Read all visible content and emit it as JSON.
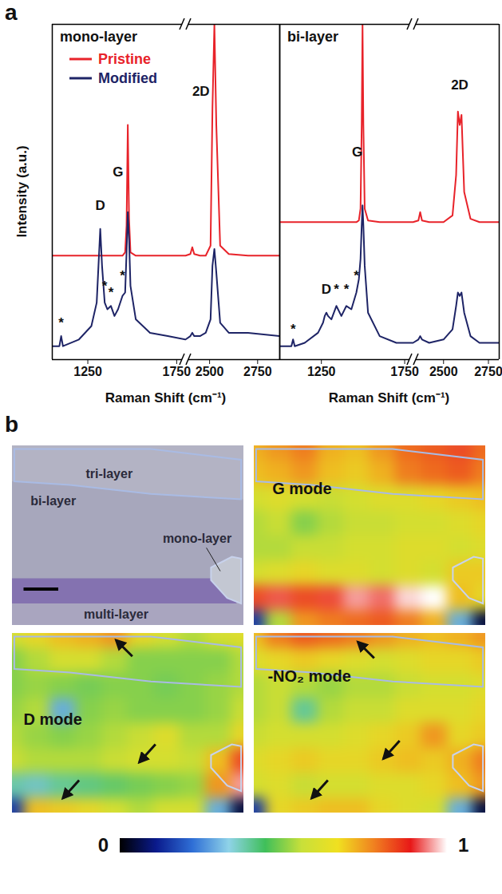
{
  "panel_labels": [
    "a",
    "b"
  ],
  "chart_data": [
    {
      "type": "line",
      "title": "mono-layer",
      "y_label": "Intensity (a.u.)",
      "x_label": "Raman Shift (cm⁻¹)",
      "ylim": [
        0,
        100
      ],
      "tick_labels": "x",
      "legend": "top-left",
      "segments": [
        {
          "xlim": [
            1050,
            1800
          ],
          "xticks": [
            1250,
            1750
          ]
        },
        {
          "xlim": [
            2375,
            2865
          ],
          "xticks": [
            2500,
            2750
          ]
        }
      ],
      "x": [
        1050,
        1090,
        1100,
        1110,
        1200,
        1270,
        1300,
        1310,
        1320,
        1330,
        1345,
        1360,
        1380,
        1400,
        1420,
        1445,
        1460,
        1468,
        1475,
        1482,
        1490,
        1520,
        1600,
        1700,
        1800,
        2375,
        2400,
        2410,
        2420,
        2450,
        2480,
        2505,
        2515,
        2525,
        2535,
        2555,
        2600,
        2700,
        2865
      ],
      "series": [
        {
          "name": "Pristine",
          "color": "#e8232a",
          "values": [
            31,
            31,
            31,
            31,
            31,
            31,
            31,
            31,
            31,
            31,
            31,
            31,
            31,
            31,
            31,
            31,
            32,
            40,
            70,
            42,
            32,
            31,
            31,
            31,
            31,
            31,
            31.5,
            33.5,
            31.5,
            31,
            31,
            34,
            75,
            100,
            70,
            34,
            31.5,
            31,
            31
          ]
        },
        {
          "name": "Modified",
          "color": "#1e2466",
          "values": [
            4,
            4,
            7,
            4,
            6,
            10,
            17,
            28,
            39,
            28,
            17,
            15,
            16,
            13,
            15,
            19,
            20,
            32,
            44,
            36,
            22,
            12,
            8,
            7,
            6,
            6,
            7,
            8,
            7,
            7,
            8,
            12,
            28,
            33,
            26,
            11,
            8,
            8,
            7
          ]
        }
      ],
      "annotations": [
        {
          "x": 1320,
          "y": 46,
          "text": "D"
        },
        {
          "x": 1100,
          "y": 11,
          "text": "*"
        },
        {
          "x": 1345,
          "y": 22,
          "text": "*"
        },
        {
          "x": 1380,
          "y": 20,
          "text": "*"
        },
        {
          "x": 1445,
          "y": 25,
          "text": "*"
        },
        {
          "x": 1420,
          "y": 56,
          "text": "G"
        },
        {
          "x": 2455,
          "y": 80,
          "text": "2D"
        }
      ]
    },
    {
      "type": "line",
      "title": "bi-layer",
      "x_label": "Raman Shift (cm⁻¹)",
      "ylim": [
        0,
        100
      ],
      "tick_labels": "x",
      "segments": [
        {
          "xlim": [
            1000,
            1800
          ],
          "xticks": [
            1250,
            1750
          ]
        },
        {
          "xlim": [
            2330,
            2810
          ],
          "xticks": [
            2500,
            2750
          ]
        }
      ],
      "x": [
        1000,
        1070,
        1080,
        1090,
        1150,
        1230,
        1260,
        1270,
        1280,
        1290,
        1310,
        1340,
        1370,
        1400,
        1430,
        1460,
        1475,
        1485,
        1492,
        1497,
        1502,
        1510,
        1530,
        1600,
        1700,
        1800,
        2330,
        2360,
        2370,
        2380,
        2420,
        2500,
        2550,
        2570,
        2580,
        2590,
        2600,
        2615,
        2650,
        2700,
        2810
      ],
      "series": [
        {
          "name": "Pristine",
          "color": "#e8232a",
          "values": [
            41,
            41,
            41,
            41,
            41,
            41,
            41,
            41,
            41,
            41,
            41,
            41,
            41,
            41,
            41,
            41,
            41.5,
            45,
            70,
            100,
            70,
            45,
            41.5,
            41,
            41,
            41,
            41,
            41.5,
            44,
            41.5,
            41,
            41,
            43,
            55,
            74,
            70,
            73,
            50,
            42,
            41,
            41
          ]
        },
        {
          "name": "Modified",
          "color": "#1e2466",
          "values": [
            4,
            4,
            6,
            4,
            5,
            8,
            11,
            13,
            14,
            13,
            12,
            16,
            13,
            16,
            15,
            20,
            24,
            30,
            40,
            46,
            40,
            28,
            14,
            7,
            5,
            5,
            5,
            6,
            7,
            6,
            5,
            6,
            9,
            16,
            20,
            19,
            20,
            14,
            7,
            5,
            5
          ]
        }
      ],
      "annotations": [
        {
          "x": 1280,
          "y": 21,
          "text": "D"
        },
        {
          "x": 1080,
          "y": 9,
          "text": "*"
        },
        {
          "x": 1340,
          "y": 21,
          "text": "*"
        },
        {
          "x": 1400,
          "y": 21,
          "text": "*"
        },
        {
          "x": 1460,
          "y": 25,
          "text": "*"
        },
        {
          "x": 1465,
          "y": 62,
          "text": "G"
        },
        {
          "x": 2590,
          "y": 82,
          "text": "2D"
        }
      ]
    },
    {
      "type": "image",
      "labels": [
        "tri-layer",
        "bi-layer",
        "mono-layer",
        "multi-layer"
      ]
    },
    {
      "type": "heatmap",
      "title": "G mode",
      "cells": [
        [
          0.72,
          0.75,
          0.78,
          0.72,
          0.7,
          0.75,
          0.8,
          0.82,
          0.85,
          0.8
        ],
        [
          0.7,
          0.72,
          0.75,
          0.7,
          0.68,
          0.72,
          0.78,
          0.8,
          0.82,
          0.78
        ],
        [
          0.6,
          0.62,
          0.6,
          0.58,
          0.6,
          0.62,
          0.62,
          0.65,
          0.68,
          0.7
        ],
        [
          0.55,
          0.58,
          0.5,
          0.55,
          0.58,
          0.58,
          0.6,
          0.6,
          0.62,
          0.65
        ],
        [
          0.55,
          0.55,
          0.58,
          0.58,
          0.6,
          0.6,
          0.62,
          0.62,
          0.6,
          0.62
        ],
        [
          0.6,
          0.62,
          0.65,
          0.62,
          0.62,
          0.6,
          0.62,
          0.6,
          0.68,
          0.68
        ],
        [
          0.85,
          0.9,
          0.85,
          0.88,
          0.95,
          0.92,
          0.98,
          1.0,
          0.7,
          0.65
        ],
        [
          0.15,
          0.55,
          0.75,
          0.78,
          0.8,
          0.82,
          0.78,
          0.72,
          0.3,
          0.05
        ]
      ]
    },
    {
      "type": "heatmap",
      "title": "D mode",
      "cells": [
        [
          0.6,
          0.65,
          0.7,
          0.72,
          0.75,
          0.65,
          0.6,
          0.55,
          0.6,
          0.62
        ],
        [
          0.5,
          0.55,
          0.6,
          0.6,
          0.55,
          0.5,
          0.5,
          0.5,
          0.5,
          0.55
        ],
        [
          0.5,
          0.52,
          0.5,
          0.48,
          0.5,
          0.5,
          0.48,
          0.5,
          0.52,
          0.55
        ],
        [
          0.52,
          0.55,
          0.3,
          0.5,
          0.52,
          0.5,
          0.5,
          0.5,
          0.52,
          0.58
        ],
        [
          0.55,
          0.52,
          0.5,
          0.52,
          0.55,
          0.58,
          0.62,
          0.55,
          0.55,
          0.65
        ],
        [
          0.58,
          0.55,
          0.55,
          0.55,
          0.58,
          0.6,
          0.6,
          0.58,
          0.7,
          0.85
        ],
        [
          0.38,
          0.35,
          0.4,
          0.42,
          0.45,
          0.48,
          0.5,
          0.52,
          0.75,
          0.95
        ],
        [
          0.15,
          0.7,
          0.68,
          0.65,
          0.6,
          0.55,
          0.6,
          0.6,
          0.3,
          0.05
        ]
      ]
    },
    {
      "type": "heatmap",
      "title": "-NO₂ mode",
      "cells": [
        [
          0.7,
          0.78,
          0.82,
          0.8,
          0.78,
          0.75,
          0.72,
          0.7,
          0.72,
          0.75
        ],
        [
          0.62,
          0.65,
          0.68,
          0.65,
          0.62,
          0.6,
          0.62,
          0.65,
          0.65,
          0.68
        ],
        [
          0.55,
          0.58,
          0.55,
          0.52,
          0.55,
          0.55,
          0.58,
          0.6,
          0.6,
          0.62
        ],
        [
          0.55,
          0.58,
          0.4,
          0.55,
          0.58,
          0.58,
          0.62,
          0.62,
          0.62,
          0.65
        ],
        [
          0.58,
          0.6,
          0.6,
          0.6,
          0.62,
          0.65,
          0.68,
          0.75,
          0.65,
          0.68
        ],
        [
          0.62,
          0.65,
          0.68,
          0.65,
          0.65,
          0.68,
          0.7,
          0.68,
          0.72,
          0.78
        ],
        [
          0.6,
          0.62,
          0.58,
          0.6,
          0.6,
          0.62,
          0.62,
          0.65,
          0.7,
          0.75
        ],
        [
          0.15,
          0.65,
          0.68,
          0.7,
          0.7,
          0.65,
          0.62,
          0.6,
          0.3,
          0.05
        ]
      ]
    }
  ],
  "colorbar": {
    "range": [
      0,
      1
    ],
    "ticks": [
      0,
      1
    ],
    "colors": [
      "#000000",
      "#0a1a8c",
      "#2f6fd6",
      "#8fd3e8",
      "#3fbf5a",
      "#c8e03a",
      "#f0e020",
      "#f08020",
      "#e81818",
      "#ffffff"
    ]
  }
}
